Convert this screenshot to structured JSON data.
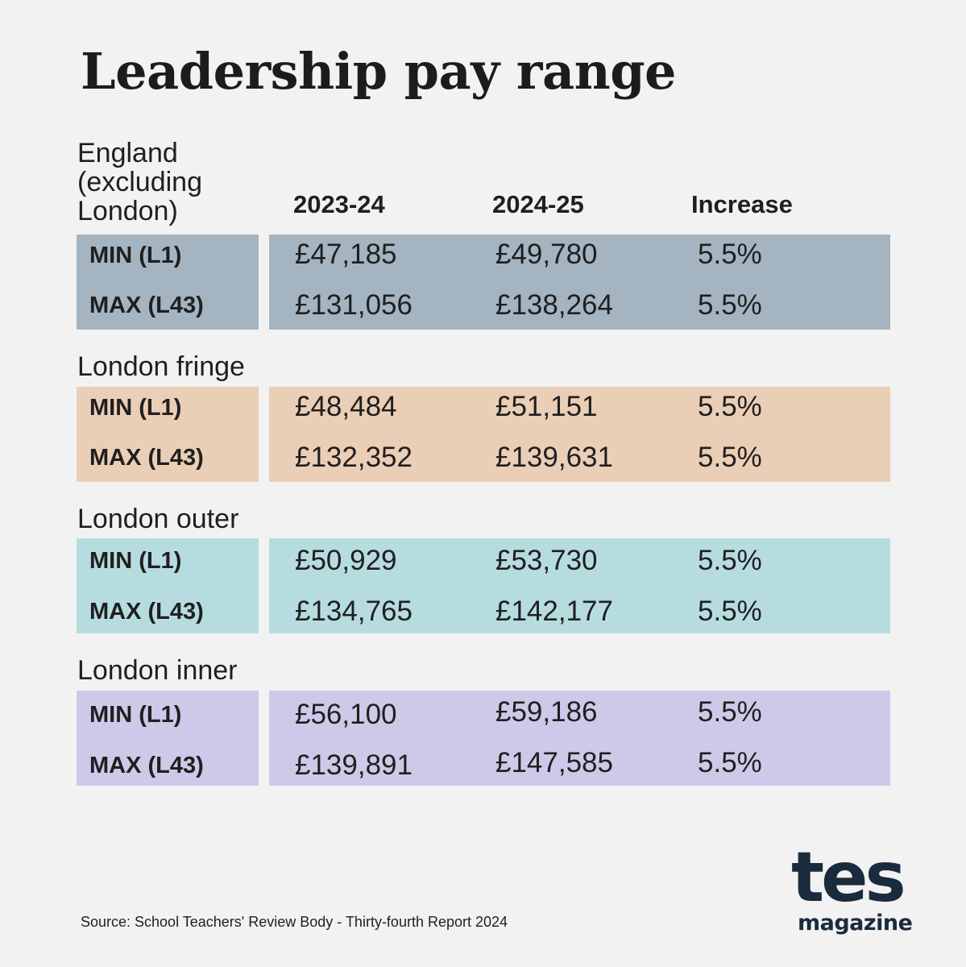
{
  "chart_data": {
    "type": "table",
    "title": "Leadership pay range",
    "columns": [
      "2023-24",
      "2024-25",
      "Increase"
    ],
    "regions": [
      {
        "name": "England (excluding London)",
        "name_lines": [
          "England",
          "(excluding",
          "London)"
        ],
        "color": "#a4b5c1",
        "rows": [
          {
            "label": "MIN (L1)",
            "y2023": "£47,185",
            "y2024": "£49,780",
            "increase": "5.5%"
          },
          {
            "label": "MAX (L43)",
            "y2023": "£131,056",
            "y2024": "£138,264",
            "increase": "5.5%"
          }
        ]
      },
      {
        "name": "London fringe",
        "name_lines": [
          "London fringe"
        ],
        "color": "#ebceb6",
        "rows": [
          {
            "label": "MIN (L1)",
            "y2023": "£48,484",
            "y2024": "£51,151",
            "increase": "5.5%"
          },
          {
            "label": "MAX (L43)",
            "y2023": "£132,352",
            "y2024": "£139,631",
            "increase": "5.5%"
          }
        ]
      },
      {
        "name": "London outer",
        "name_lines": [
          "London outer"
        ],
        "color": "#b6dcdf",
        "rows": [
          {
            "label": "MIN (L1)",
            "y2023": "£50,929",
            "y2024": "£53,730",
            "increase": "5.5%"
          },
          {
            "label": "MAX (L43)",
            "y2023": "£134,765",
            "y2024": "£142,177",
            "increase": "5.5%"
          }
        ]
      },
      {
        "name": "London inner",
        "name_lines": [
          "London inner"
        ],
        "color": "#d0c8e9",
        "rows": [
          {
            "label": "MIN (L1)",
            "y2023": "£56,100",
            "y2024": "£59,186",
            "increase": "5.5%"
          },
          {
            "label": "MAX (L43)",
            "y2023": "£139,891",
            "y2024": "£147,585",
            "increase": "5.5%"
          }
        ]
      }
    ]
  },
  "source": "Source: School Teachers' Review Body - Thirty-fourth Report 2024",
  "logo": {
    "main": "tes",
    "sub": "magazine",
    "color": "#1a2b3d"
  }
}
